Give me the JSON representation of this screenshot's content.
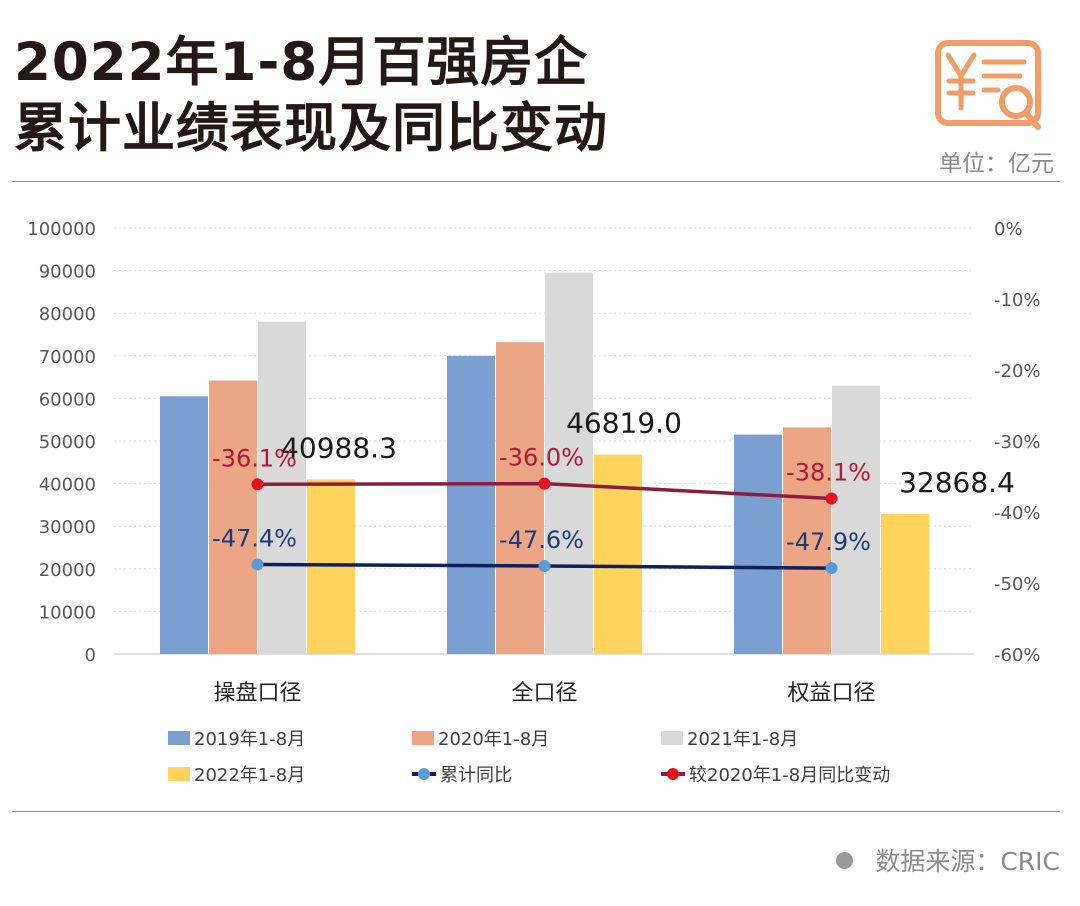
{
  "header": {
    "title_line1": "2022年1-8月百强房企",
    "title_line2": "累计业绩表现及同比变动",
    "unit": "单位：亿元",
    "logo_icon": "yen-report-magnifier-icon"
  },
  "footer": {
    "source": "数据来源：CRIC"
  },
  "colors": {
    "s2019": "#7b9fd0",
    "s2020": "#eca585",
    "s2021": "#d9d9d9",
    "s2022": "#ffd35c",
    "cumulative_yoy": "#0d1f5c",
    "cumulative_yoy_marker": "#5b9bd5",
    "vs2020": "#8b1e3f",
    "vs2020_marker": "#e8101f",
    "logo": "#f19d6a",
    "axis_text": "#595959"
  },
  "chart_data": {
    "type": "bar",
    "categories": [
      "操盘口径",
      "全口径",
      "权益口径"
    ],
    "y_left": {
      "ylim": [
        0,
        100000
      ],
      "ticks": [
        "0",
        "10000",
        "20000",
        "30000",
        "40000",
        "50000",
        "60000",
        "70000",
        "80000",
        "90000",
        "100000"
      ]
    },
    "y_right": {
      "ylim": [
        -60,
        0
      ],
      "unit": "%",
      "ticks": [
        "0%",
        "-10%",
        "-20%",
        "-30%",
        "-40%",
        "-50%",
        "-60%"
      ]
    },
    "gridlines": true,
    "legend_position": "bottom",
    "series": [
      {
        "name": "2019年1-8月",
        "type": "bar",
        "axis": "left",
        "values": [
          60500,
          70000,
          51500
        ]
      },
      {
        "name": "2020年1-8月",
        "type": "bar",
        "axis": "left",
        "values": [
          64200,
          73200,
          53200
        ]
      },
      {
        "name": "2021年1-8月",
        "type": "bar",
        "axis": "left",
        "values": [
          78000,
          89500,
          63000
        ]
      },
      {
        "name": "2022年1-8月",
        "type": "bar",
        "axis": "left",
        "values": [
          40988.3,
          46819.0,
          32868.4
        ],
        "data_labels": [
          "40988.3",
          "46819.0",
          "32868.4"
        ]
      },
      {
        "name": "累计同比",
        "type": "line",
        "axis": "right",
        "values": [
          -47.4,
          -47.6,
          -47.9
        ],
        "data_labels": [
          "-47.4%",
          "-47.6%",
          "-47.9%"
        ]
      },
      {
        "name": "较2020年1-8月同比变动",
        "type": "line",
        "axis": "right",
        "values": [
          -36.1,
          -36.0,
          -38.1
        ],
        "data_labels": [
          "-36.1%",
          "-36.0%",
          "-38.1%"
        ]
      }
    ]
  }
}
